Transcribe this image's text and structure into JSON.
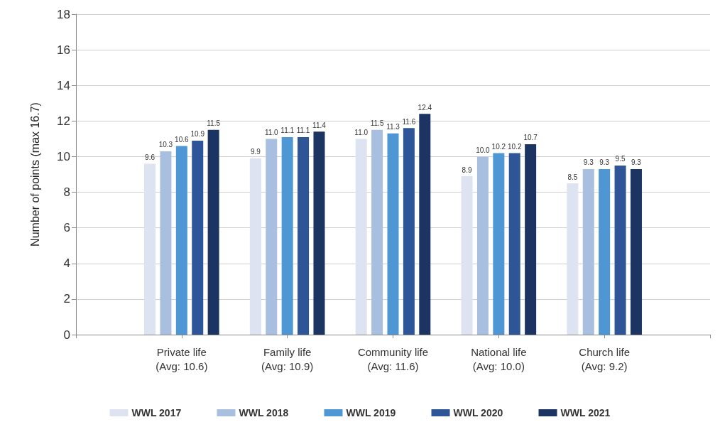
{
  "chart_data": {
    "type": "bar",
    "ylabel": "Number of points (max 16.7)",
    "categories": [
      null,
      "Private life\n(Avg: 10.6)",
      "Family life\n(Avg: 10.9)",
      "Community life\n(Avg: 11.6)",
      "National life\n(Avg: 10.0)",
      "Church life\n(Avg: 9.2)",
      null
    ],
    "series": [
      {
        "name": "WWL 2017",
        "color": "#dde3f1",
        "values": [
          null,
          9.6,
          9.9,
          11.0,
          8.9,
          8.5,
          null
        ],
        "value_labels": [
          null,
          "9.6",
          "9.9",
          "11.0",
          "8.9",
          "8.5",
          null
        ]
      },
      {
        "name": "WWL 2018",
        "color": "#a9bfdf",
        "values": [
          null,
          10.3,
          11.0,
          11.5,
          10.0,
          9.3,
          null
        ],
        "value_labels": [
          null,
          "10.3",
          "11.0",
          "11.5",
          "10.0",
          "9.3",
          null
        ]
      },
      {
        "name": "WWL 2019",
        "color": "#4f97d4",
        "values": [
          null,
          10.6,
          11.1,
          11.3,
          10.2,
          9.3,
          null
        ],
        "value_labels": [
          null,
          "10.6",
          "11.1",
          "11.3",
          "10.2",
          "9.3",
          null
        ]
      },
      {
        "name": "WWL 2020",
        "color": "#2e5597",
        "values": [
          null,
          10.9,
          11.1,
          11.6,
          10.2,
          9.5,
          null
        ],
        "value_labels": [
          null,
          "10.9",
          "11.1",
          "11.6",
          "10.2",
          "9.5",
          null
        ]
      },
      {
        "name": "WWL 2021",
        "color": "#1c3461",
        "values": [
          null,
          11.5,
          11.4,
          12.4,
          10.7,
          9.3,
          null
        ],
        "value_labels": [
          null,
          "11.5",
          "11.4",
          "12.4",
          "10.7",
          "9.3",
          null
        ]
      }
    ],
    "ylim": [
      0,
      18
    ],
    "yticks": [
      0,
      2,
      4,
      6,
      8,
      10,
      12,
      14,
      16,
      18
    ],
    "grid": "y",
    "legend": "bottom"
  }
}
